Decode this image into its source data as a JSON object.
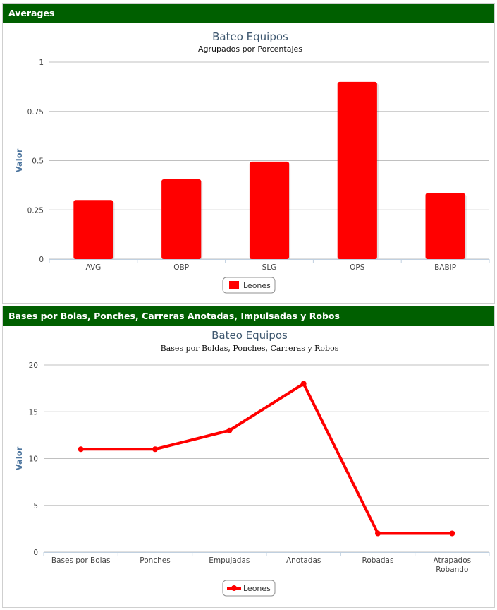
{
  "panels": [
    {
      "header": "Averages"
    },
    {
      "header": "Bases por Bolas, Ponches, Carreras Anotadas, Impulsadas y Robos"
    }
  ],
  "chart_data": [
    {
      "type": "bar",
      "title": "Bateo Equipos",
      "subtitle": "Agrupados por Porcentajes",
      "ylabel": "Valor",
      "xlabel": "",
      "categories": [
        "AVG",
        "OBP",
        "SLG",
        "OPS",
        "BABIP"
      ],
      "series": [
        {
          "name": "Leones",
          "values": [
            0.3,
            0.405,
            0.495,
            0.9,
            0.335
          ]
        }
      ],
      "ylim": [
        0,
        1
      ],
      "yticks": [
        "0",
        "0.25",
        "0.5",
        "0.75",
        "1"
      ],
      "grid": true,
      "legend": "bottom-center",
      "color": "#ff0000"
    },
    {
      "type": "line",
      "title": "Bateo Equipos",
      "subtitle": "Bases por Boldas, Ponches, Carreras y Robos",
      "ylabel": "Valor",
      "xlabel": "",
      "categories": [
        "Bases por Bolas",
        "Ponches",
        "Empujadas",
        "Anotadas",
        "Robadas",
        "Atrapados Robando"
      ],
      "series": [
        {
          "name": "Leones",
          "values": [
            11,
            11,
            13,
            18,
            2,
            2
          ]
        }
      ],
      "ylim": [
        0,
        20
      ],
      "yticks": [
        "0",
        "5",
        "10",
        "15",
        "20"
      ],
      "grid": true,
      "legend": "bottom-center",
      "color": "#ff0000"
    }
  ]
}
